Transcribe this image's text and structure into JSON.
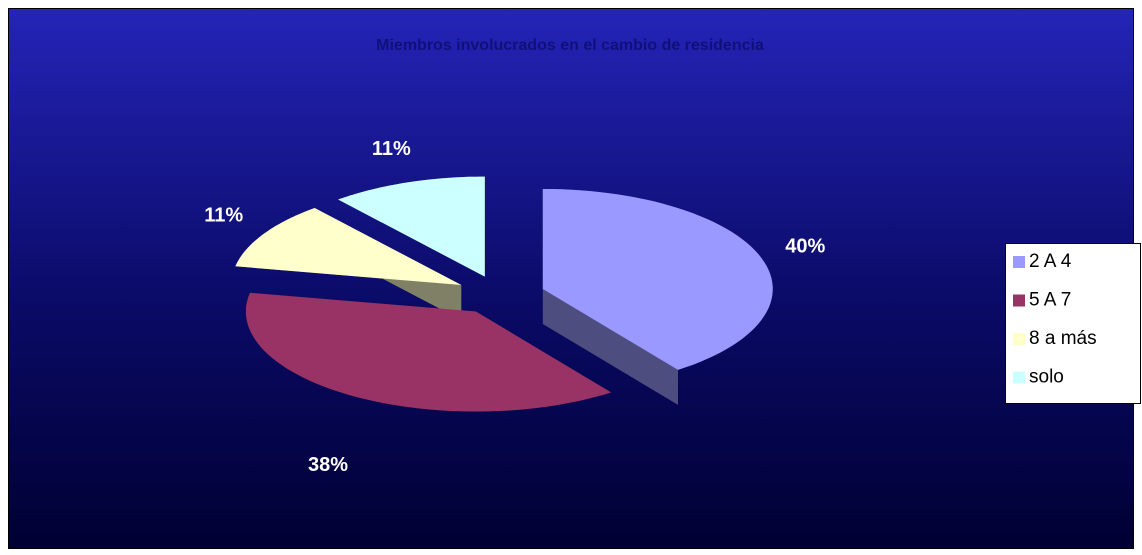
{
  "chart_data": {
    "type": "pie",
    "title": "Miembros involucrados en el cambio de residencia",
    "categories": [
      "2 A 4",
      "5 A 7",
      "8 a más",
      "solo"
    ],
    "values": [
      40,
      38,
      11,
      11
    ],
    "value_labels": [
      "40%",
      "38%",
      "11%",
      "11%"
    ],
    "colors": [
      "#9999ff",
      "#993366",
      "#ffffcc",
      "#ccffff"
    ],
    "legend": "right"
  }
}
